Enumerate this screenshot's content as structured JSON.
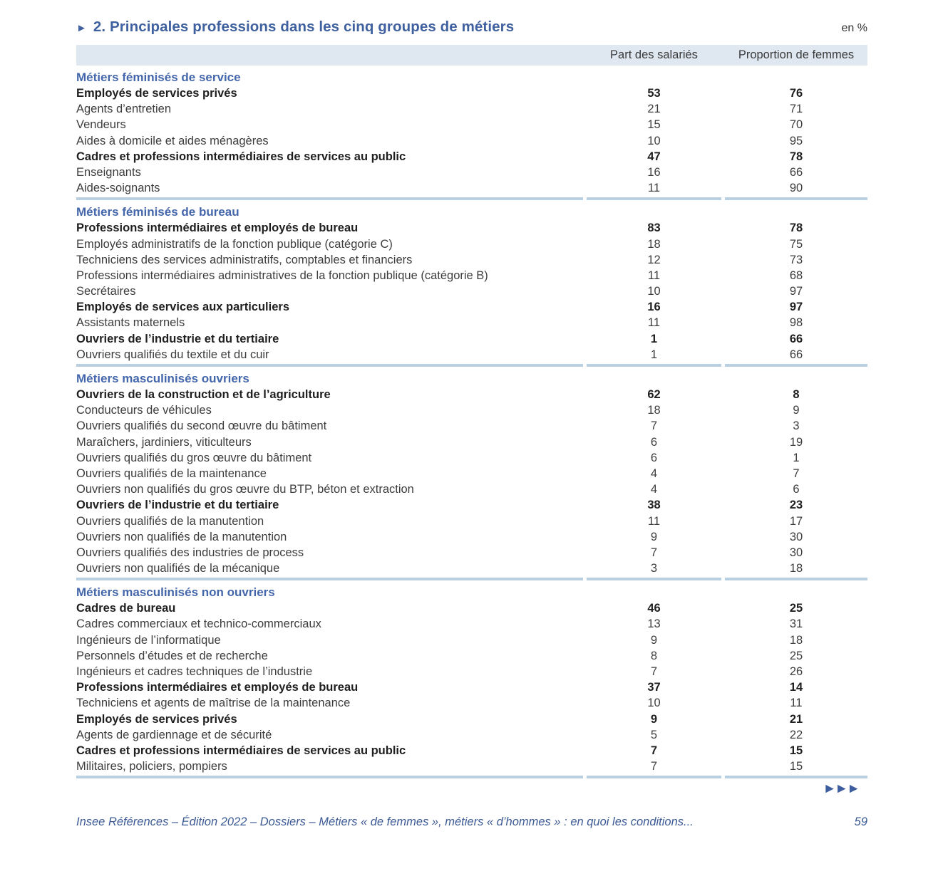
{
  "title": {
    "arrow": "►",
    "text": "2. Principales professions dans les cinq groupes de métiers",
    "unit": "en %"
  },
  "table": {
    "columns": [
      "Part des salariés",
      "Proportion de femmes"
    ],
    "groups": [
      {
        "name": "Métiers féminisés de service",
        "rows": [
          {
            "label": "Employés de services privés",
            "bold": true,
            "values": [
              "53",
              "76"
            ]
          },
          {
            "label": "Agents d’entretien",
            "bold": false,
            "values": [
              "21",
              "71"
            ]
          },
          {
            "label": "Vendeurs",
            "bold": false,
            "values": [
              "15",
              "70"
            ]
          },
          {
            "label": "Aides à domicile et aides ménagères",
            "bold": false,
            "values": [
              "10",
              "95"
            ]
          },
          {
            "label": "Cadres et professions intermédiaires de services au public",
            "bold": true,
            "values": [
              "47",
              "78"
            ]
          },
          {
            "label": "Enseignants",
            "bold": false,
            "values": [
              "16",
              "66"
            ]
          },
          {
            "label": "Aides-soignants",
            "bold": false,
            "values": [
              "11",
              "90"
            ]
          }
        ]
      },
      {
        "name": "Métiers féminisés de bureau",
        "rows": [
          {
            "label": "Professions intermédiaires et employés de bureau",
            "bold": true,
            "values": [
              "83",
              "78"
            ]
          },
          {
            "label": "Employés administratifs de la fonction publique (catégorie C)",
            "bold": false,
            "values": [
              "18",
              "75"
            ]
          },
          {
            "label": "Techniciens des services administratifs, comptables et financiers",
            "bold": false,
            "values": [
              "12",
              "73"
            ]
          },
          {
            "label": "Professions intermédiaires administratives de la fonction publique (catégorie B)",
            "bold": false,
            "values": [
              "11",
              "68"
            ]
          },
          {
            "label": "Secrétaires",
            "bold": false,
            "values": [
              "10",
              "97"
            ]
          },
          {
            "label": "Employés de services aux particuliers",
            "bold": true,
            "values": [
              "16",
              "97"
            ]
          },
          {
            "label": "Assistants maternels",
            "bold": false,
            "values": [
              "11",
              "98"
            ]
          },
          {
            "label": "Ouvriers de l’industrie et du tertiaire",
            "bold": true,
            "values": [
              "1",
              "66"
            ]
          },
          {
            "label": "Ouvriers qualifiés du textile et du cuir",
            "bold": false,
            "values": [
              "1",
              "66"
            ]
          }
        ]
      },
      {
        "name": "Métiers masculinisés ouvriers",
        "rows": [
          {
            "label": "Ouvriers de la construction et de l’agriculture",
            "bold": true,
            "values": [
              "62",
              "8"
            ]
          },
          {
            "label": "Conducteurs de véhicules",
            "bold": false,
            "values": [
              "18",
              "9"
            ]
          },
          {
            "label": "Ouvriers qualifiés du second œuvre du bâtiment",
            "bold": false,
            "values": [
              "7",
              "3"
            ]
          },
          {
            "label": "Maraîchers, jardiniers, viticulteurs",
            "bold": false,
            "values": [
              "6",
              "19"
            ]
          },
          {
            "label": "Ouvriers qualifiés du gros œuvre du bâtiment",
            "bold": false,
            "values": [
              "6",
              "1"
            ]
          },
          {
            "label": "Ouvriers qualifiés de la maintenance",
            "bold": false,
            "values": [
              "4",
              "7"
            ]
          },
          {
            "label": "Ouvriers non qualifiés du gros œuvre du BTP, béton et extraction",
            "bold": false,
            "values": [
              "4",
              "6"
            ]
          },
          {
            "label": "Ouvriers de l’industrie et du tertiaire",
            "bold": true,
            "values": [
              "38",
              "23"
            ]
          },
          {
            "label": "Ouvriers qualifiés de la manutention",
            "bold": false,
            "values": [
              "11",
              "17"
            ]
          },
          {
            "label": "Ouvriers non qualifiés de la manutention",
            "bold": false,
            "values": [
              "9",
              "30"
            ]
          },
          {
            "label": "Ouvriers qualifiés des industries de process",
            "bold": false,
            "values": [
              "7",
              "30"
            ]
          },
          {
            "label": "Ouvriers non qualifiés de la mécanique",
            "bold": false,
            "values": [
              "3",
              "18"
            ]
          }
        ]
      },
      {
        "name": "Métiers masculinisés non ouvriers",
        "rows": [
          {
            "label": "Cadres de bureau",
            "bold": true,
            "values": [
              "46",
              "25"
            ]
          },
          {
            "label": "Cadres commerciaux et technico-commerciaux",
            "bold": false,
            "values": [
              "13",
              "31"
            ]
          },
          {
            "label": "Ingénieurs de l’informatique",
            "bold": false,
            "values": [
              "9",
              "18"
            ]
          },
          {
            "label": "Personnels d’études et de recherche",
            "bold": false,
            "values": [
              "8",
              "25"
            ]
          },
          {
            "label": "Ingénieurs et cadres techniques de l’industrie",
            "bold": false,
            "values": [
              "7",
              "26"
            ]
          },
          {
            "label": "Professions intermédiaires et employés de bureau",
            "bold": true,
            "values": [
              "37",
              "14"
            ]
          },
          {
            "label": "Techniciens et agents de maîtrise de la maintenance",
            "bold": false,
            "values": [
              "10",
              "11"
            ]
          },
          {
            "label": "Employés de services privés",
            "bold": true,
            "values": [
              "9",
              "21"
            ]
          },
          {
            "label": "Agents de gardiennage et de sécurité",
            "bold": false,
            "values": [
              "5",
              "22"
            ]
          },
          {
            "label": "Cadres et professions intermédiaires de services au public",
            "bold": true,
            "values": [
              "7",
              "15"
            ]
          },
          {
            "label": "Militaires, policiers, pompiers",
            "bold": false,
            "values": [
              "7",
              "15"
            ]
          }
        ]
      }
    ]
  },
  "footer": {
    "arrows": "►►►",
    "source": "Insee Références – Édition 2022 – Dossiers – Métiers « de femmes », métiers « d’hommes » : en quoi les conditions...",
    "page": "59"
  },
  "colors": {
    "accent_blue": "#40619f",
    "heading_blue": "#4466ab",
    "divider_blue": "#b9cfe2",
    "header_bg": "#dfe8f1",
    "footer_blue": "#3c5a94"
  }
}
